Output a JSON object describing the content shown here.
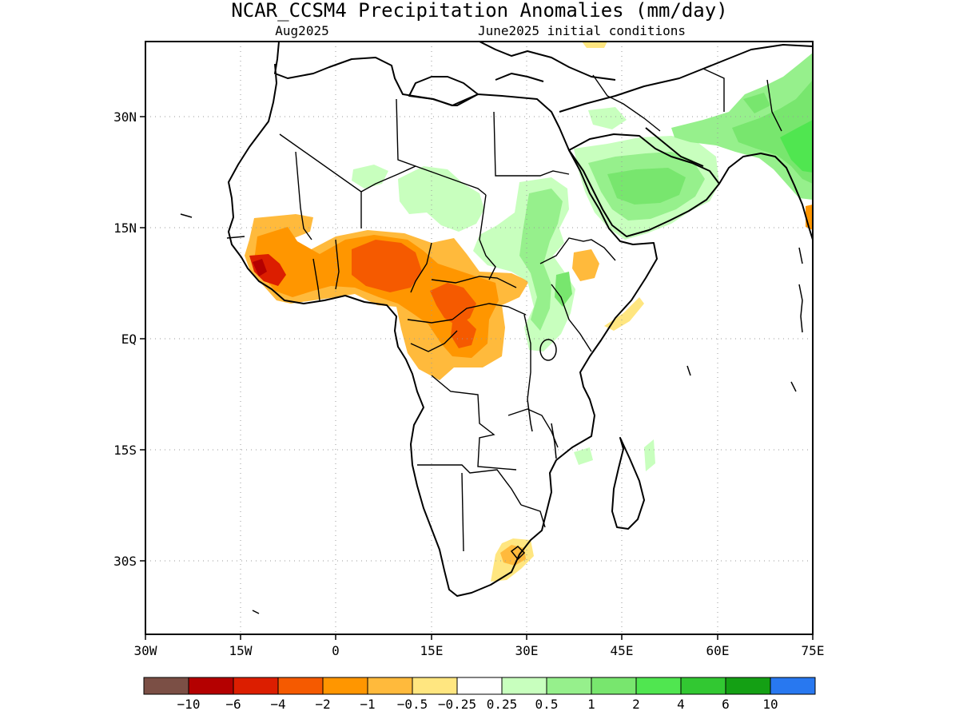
{
  "title": "NCAR_CCSM4 Precipitation Anomalies (mm/day)",
  "valid_month": "Aug2025",
  "init_conditions": "June2025 initial conditions",
  "lat_ticks": [
    "30N",
    "15N",
    "EQ",
    "15S",
    "30S"
  ],
  "lon_ticks": [
    "30W",
    "15W",
    "0",
    "15E",
    "30E",
    "45E",
    "60E",
    "75E"
  ],
  "colorbar": {
    "colors": [
      "#7b4f45",
      "#b40000",
      "#dc1e00",
      "#f55a00",
      "#ff9600",
      "#ffba3c",
      "#ffe680",
      "#ffffff",
      "#c8ffbe",
      "#96f08c",
      "#78e66e",
      "#50e650",
      "#32c832",
      "#14a014",
      "#2878f0"
    ],
    "labels": [
      "−10",
      "−6",
      "−4",
      "−2",
      "−1",
      "−0.5",
      "−0.25",
      "0.25",
      "0.5",
      "1",
      "2",
      "4",
      "6",
      "10"
    ]
  },
  "colors": {
    "coast": "#000000",
    "grid": "#9a9a9a"
  }
}
